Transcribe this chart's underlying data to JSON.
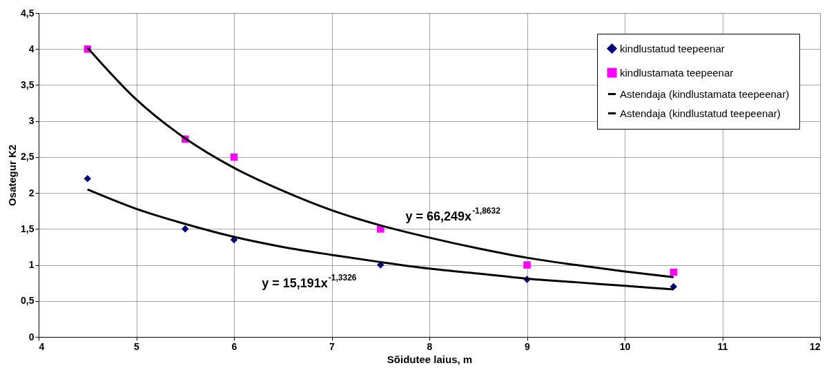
{
  "chart_data": {
    "type": "scatter",
    "xlabel": "Sõidutee laius, m",
    "ylabel": "Osategur K2",
    "xlim": [
      4,
      12
    ],
    "xticks": [
      4,
      5,
      6,
      7,
      8,
      9,
      10,
      11,
      12
    ],
    "ylim": [
      0,
      4.5
    ],
    "yticks": [
      0,
      {
        "value": 0.5,
        "label": "0,5"
      },
      1,
      {
        "value": 1.5,
        "label": "1,5"
      },
      2,
      {
        "value": 2.5,
        "label": "2,5"
      },
      3,
      {
        "value": 3.5,
        "label": "3,5"
      },
      4,
      {
        "value": 4.5,
        "label": "4,5"
      }
    ],
    "grid": true,
    "legend": "top right",
    "series": [
      {
        "name": "kindlustatud teepeenar",
        "type": "scatter",
        "marker": "diamond",
        "color": "#000080",
        "x": [
          4.5,
          5.5,
          6,
          7.5,
          9,
          10.5
        ],
        "values": [
          2.2,
          1.5,
          1.35,
          1.0,
          0.8,
          0.7
        ]
      },
      {
        "name": "kindlustamata teepeenar",
        "type": "scatter",
        "marker": "square",
        "color": "#ff00ff",
        "x": [
          4.5,
          5.5,
          6,
          7.5,
          9,
          10.5
        ],
        "values": [
          4.0,
          2.75,
          2.5,
          1.5,
          1.0,
          0.9
        ]
      },
      {
        "name": "Astendaja (kindlustamata teepeenar)",
        "type": "line",
        "marker": "none",
        "line_style": "solid",
        "color": "#000000",
        "x": [
          4.5,
          5,
          5.5,
          6,
          6.5,
          7,
          7.5,
          8,
          8.5,
          9,
          9.5,
          10,
          10.5
        ],
        "values": [
          4.02,
          3.3,
          2.76,
          2.35,
          2.03,
          1.76,
          1.55,
          1.38,
          1.23,
          1.1,
          1.0,
          0.91,
          0.83
        ]
      },
      {
        "name": "Astendaja (kindlustatud teepeenar)",
        "type": "line",
        "marker": "none",
        "line_style": "solid",
        "color": "#000000",
        "x": [
          4.5,
          5,
          5.5,
          6,
          6.5,
          7,
          7.5,
          8,
          8.5,
          9,
          9.5,
          10,
          10.5
        ],
        "values": [
          2.05,
          1.78,
          1.57,
          1.39,
          1.25,
          1.14,
          1.04,
          0.95,
          0.88,
          0.81,
          0.76,
          0.71,
          0.66
        ]
      }
    ],
    "annotations": [
      "y = 66,249x$^{-1,8632}$",
      "y = 15,191x$^{-1,3326}$"
    ]
  }
}
